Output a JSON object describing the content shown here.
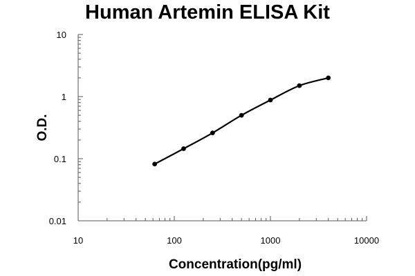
{
  "chart_data": {
    "type": "line",
    "title": "Human Artemin ELISA Kit",
    "xlabel": "Concentration(pg/ml)",
    "ylabel": "O.D.",
    "xscale": "log",
    "yscale": "log",
    "xlim": [
      10,
      10000
    ],
    "ylim": [
      0.01,
      10
    ],
    "x_tick_labels": [
      "10",
      "100",
      "1000",
      "10000"
    ],
    "y_tick_labels": [
      "0.01",
      "0.1",
      "1",
      "10"
    ],
    "grid": false,
    "legend": "none",
    "series": [
      {
        "x": [
          62.5,
          125,
          250,
          500,
          1000,
          2000,
          4000
        ],
        "y": [
          0.082,
          0.145,
          0.26,
          0.5,
          0.88,
          1.5,
          2.0
        ],
        "color": "#000000"
      }
    ]
  }
}
